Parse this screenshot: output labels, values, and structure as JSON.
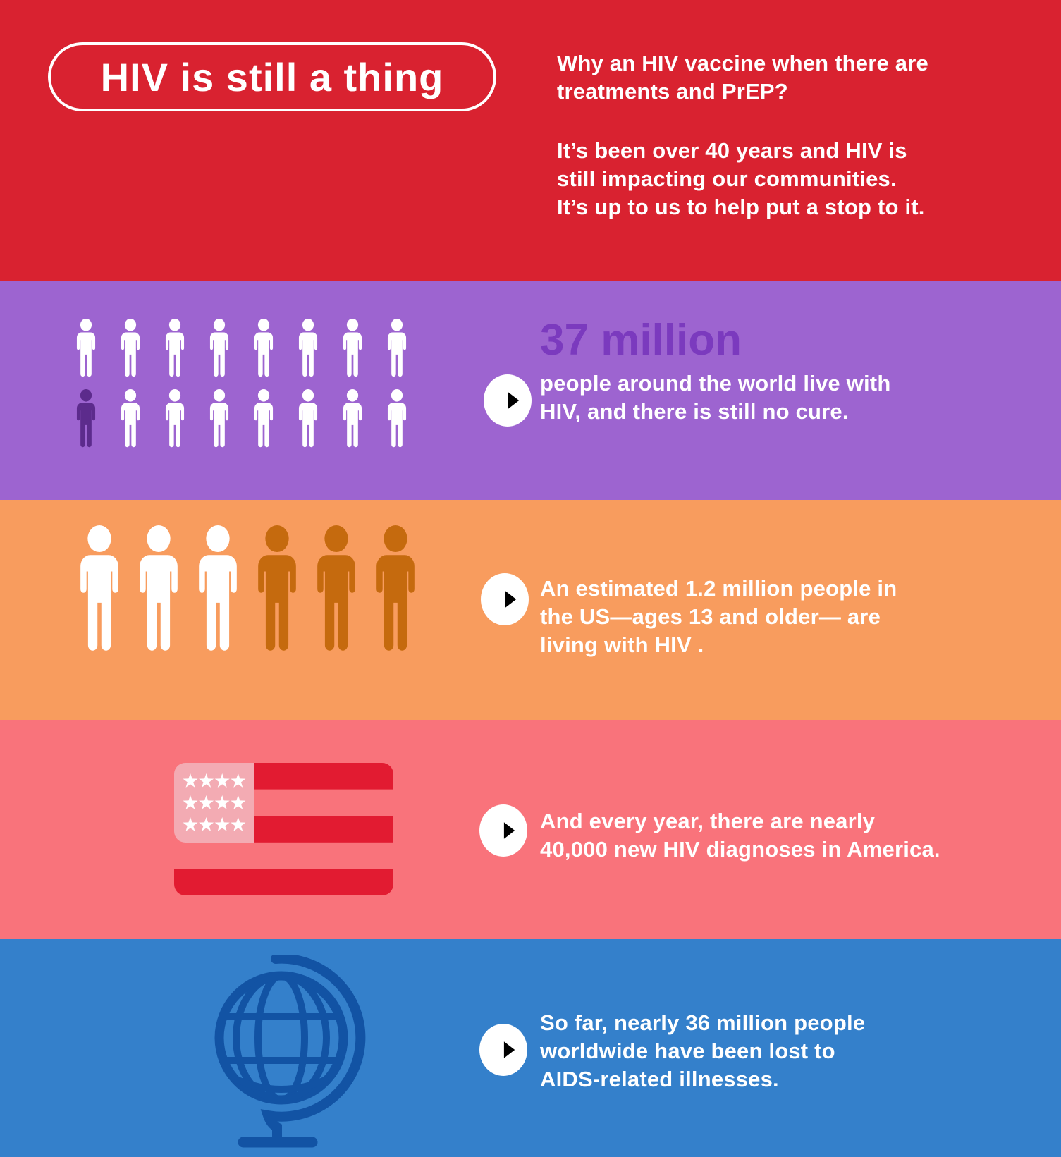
{
  "colors": {
    "band_red": "#d92230",
    "band_purple": "#9d64d0",
    "band_orange": "#f89c5e",
    "band_pink": "#f9737b",
    "band_blue": "#3480cb",
    "person_highlight_purple": "#5c2b8c",
    "person_highlight_orange": "#c56a0e",
    "stat_number_purple": "#7b3abe",
    "flag_red": "#e21b31",
    "flag_canton": "#f3abb3",
    "globe_blue": "#1253a4",
    "arrow_red": "#d7152c"
  },
  "header": {
    "title": "HIV is still a thing",
    "question": "Why an HIV vaccine when there are\ntreatments and PrEP?",
    "statement": "It’s been over 40 years and HIV is\nstill impacting our communities.\nIt’s up to us to help put a stop to it."
  },
  "sections": {
    "world": {
      "stat_number": "37 million",
      "text": "people around the world live with\nHIV, and there is still no cure.",
      "pictogram": {
        "icon": "person-pictogram",
        "rows": [
          {
            "count": 8,
            "highlighted": []
          },
          {
            "count": 8,
            "highlighted": [
              0
            ]
          }
        ]
      }
    },
    "us": {
      "text": "An estimated 1.2 million people in\nthe US—ages 13 and older— are\nliving with HIV .",
      "pictogram": {
        "icon": "person-pictogram",
        "rows": [
          {
            "count": 6,
            "highlighted": [
              3,
              4,
              5
            ]
          }
        ]
      }
    },
    "diagnoses": {
      "icon": "us-flag",
      "text": "And every year, there are nearly\n40,000 new HIV diagnoses in America."
    },
    "global_loss": {
      "icon": "desk-globe",
      "text": "So far, nearly 36 million people\nworldwide have been lost to\nAIDS-related illnesses."
    }
  },
  "icons": {
    "arrow_badge": "right-arrow-in-circle"
  }
}
